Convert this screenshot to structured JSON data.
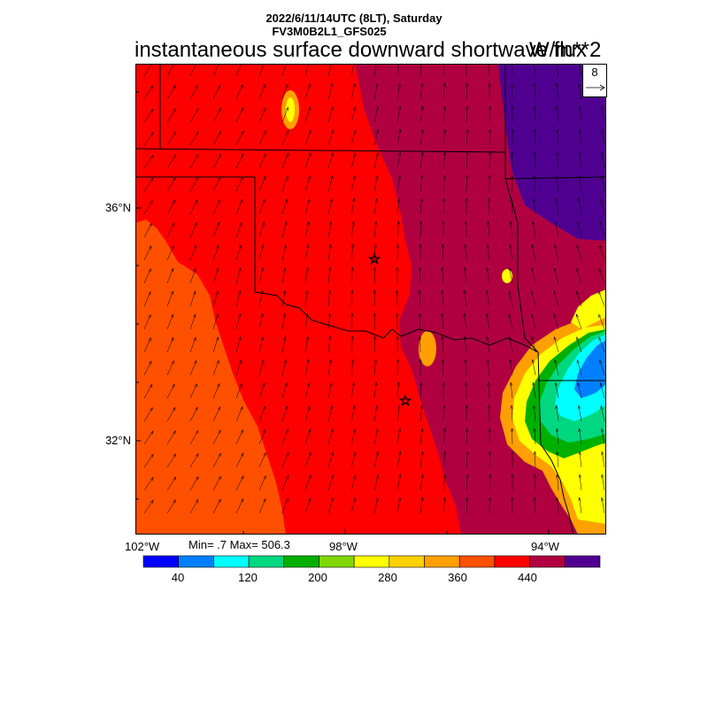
{
  "header": {
    "line1": "2022/6/11/14UTC (8LT), Saturday",
    "line2": "FV3M0B2L1_GFS025",
    "title": "instantaneous surface downward shortwave flux",
    "units": "W/m**2"
  },
  "vector_reference": {
    "value": "8"
  },
  "axes": {
    "lat_labels": [
      "36°N",
      "32°N"
    ],
    "lon_labels": [
      "102°W",
      "98°W",
      "94°W"
    ]
  },
  "stats": {
    "text": "Min= .7 Max= 506.3"
  },
  "colorbar": {
    "colors": [
      "#0000ff",
      "#0080ff",
      "#00ffff",
      "#00d880",
      "#00b000",
      "#80d800",
      "#ffff00",
      "#ffd000",
      "#ffa000",
      "#ff5000",
      "#ff0000",
      "#b00040",
      "#500090"
    ],
    "tick_labels": [
      "40",
      "120",
      "200",
      "280",
      "360",
      "440"
    ]
  },
  "map": {
    "colors": {
      "orange": "#ff5000",
      "red": "#ff0000",
      "crimson": "#b00040",
      "purple": "#500090",
      "yellow_orange": "#ffa000",
      "yellow": "#ffff00",
      "green": "#00b000",
      "teal": "#00d880",
      "cyan": "#00ffff",
      "blue": "#0080ff"
    },
    "cities": [
      "city-star-oklahoma-city",
      "city-star-dallas"
    ]
  }
}
